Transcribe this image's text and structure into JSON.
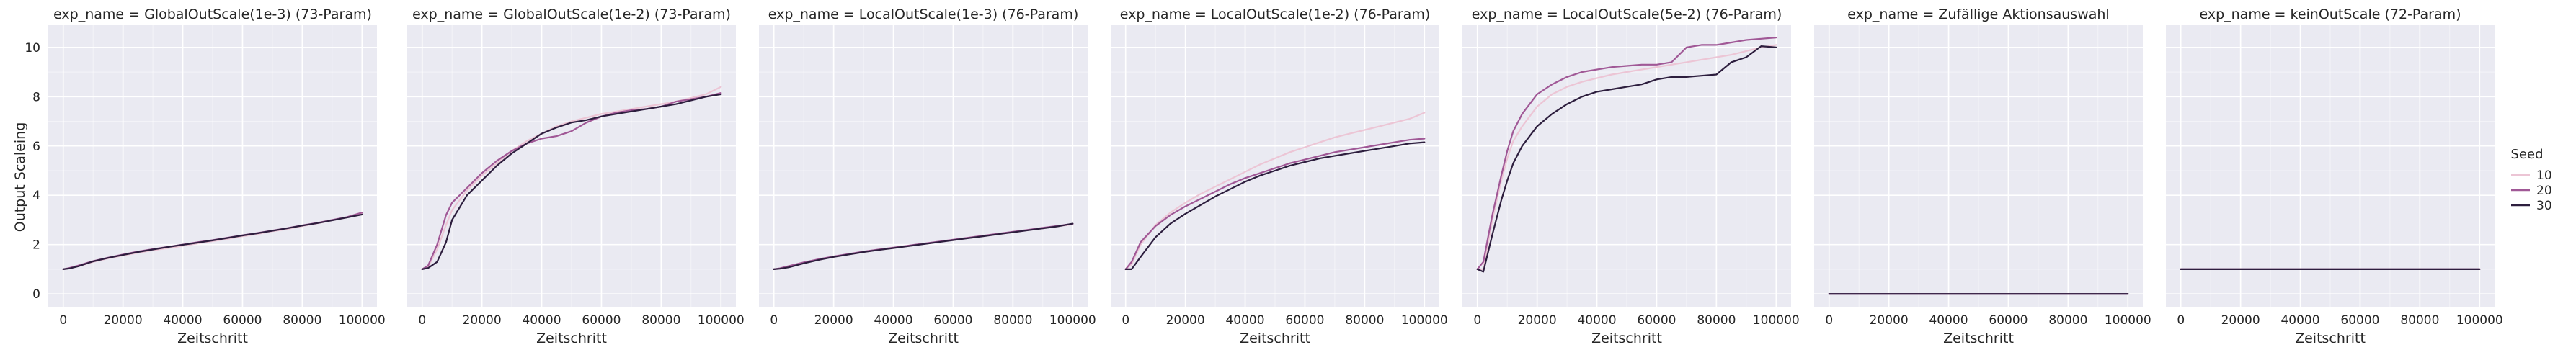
{
  "chart_data": {
    "type": "line",
    "ylabel": "Output Scaleing",
    "xlabel": "Zeitschritt",
    "xlim": [
      -5000,
      105000
    ],
    "ylim": [
      -0.55,
      10.9
    ],
    "xticks": [
      0,
      20000,
      40000,
      60000,
      80000,
      100000
    ],
    "xtick_labels": [
      "0",
      "20000",
      "40000",
      "60000",
      "80000",
      "100000"
    ],
    "yticks": [
      0,
      2,
      4,
      6,
      8,
      10
    ],
    "ytick_labels": [
      "0",
      "2",
      "4",
      "6",
      "8",
      "10"
    ],
    "grid": true,
    "legend": {
      "title": "Seed",
      "placement": "right",
      "entries": [
        {
          "label": "10",
          "color": "#ecc5d5"
        },
        {
          "label": "20",
          "color": "#a05896"
        },
        {
          "label": "30",
          "color": "#2d1e3e"
        }
      ]
    },
    "panels": [
      {
        "title": "exp_name = GlobalOutScale(1e-3) (73-Param)",
        "series": [
          {
            "seed": "10",
            "x": [
              0,
              2000,
              5000,
              10000,
              15000,
              20000,
              25000,
              30000,
              35000,
              40000,
              45000,
              50000,
              55000,
              60000,
              65000,
              70000,
              75000,
              80000,
              85000,
              90000,
              95000,
              100000
            ],
            "y": [
              1.0,
              1.04,
              1.12,
              1.3,
              1.44,
              1.56,
              1.67,
              1.77,
              1.86,
              1.95,
              2.05,
              2.14,
              2.23,
              2.34,
              2.43,
              2.54,
              2.63,
              2.75,
              2.86,
              2.98,
              3.1,
              3.25
            ]
          },
          {
            "seed": "20",
            "x": [
              0,
              2000,
              5000,
              10000,
              15000,
              20000,
              25000,
              30000,
              35000,
              40000,
              45000,
              50000,
              55000,
              60000,
              65000,
              70000,
              75000,
              80000,
              85000,
              90000,
              95000,
              100000
            ],
            "y": [
              1.0,
              1.05,
              1.15,
              1.33,
              1.47,
              1.6,
              1.72,
              1.82,
              1.91,
              2.0,
              2.1,
              2.18,
              2.28,
              2.38,
              2.47,
              2.57,
              2.67,
              2.78,
              2.88,
              3.0,
              3.12,
              3.3
            ]
          },
          {
            "seed": "30",
            "x": [
              0,
              2000,
              5000,
              10000,
              15000,
              20000,
              25000,
              30000,
              35000,
              40000,
              45000,
              50000,
              55000,
              60000,
              65000,
              70000,
              75000,
              80000,
              85000,
              90000,
              95000,
              100000
            ],
            "y": [
              1.0,
              1.03,
              1.12,
              1.32,
              1.46,
              1.58,
              1.7,
              1.8,
              1.9,
              1.99,
              2.08,
              2.17,
              2.27,
              2.37,
              2.46,
              2.56,
              2.66,
              2.77,
              2.87,
              2.98,
              3.1,
              3.22
            ]
          }
        ]
      },
      {
        "title": "exp_name = GlobalOutScale(1e-2) (73-Param)",
        "series": [
          {
            "seed": "10",
            "x": [
              0,
              2000,
              5000,
              8000,
              10000,
              15000,
              20000,
              25000,
              30000,
              35000,
              40000,
              45000,
              50000,
              55000,
              60000,
              65000,
              70000,
              75000,
              80000,
              85000,
              90000,
              95000,
              100000
            ],
            "y": [
              1.0,
              1.1,
              1.8,
              2.8,
              3.4,
              4.2,
              4.8,
              5.3,
              5.8,
              6.2,
              6.5,
              6.8,
              7.0,
              7.15,
              7.3,
              7.4,
              7.5,
              7.6,
              7.7,
              7.8,
              7.95,
              8.1,
              8.4
            ]
          },
          {
            "seed": "20",
            "x": [
              0,
              2000,
              5000,
              8000,
              10000,
              15000,
              20000,
              25000,
              30000,
              35000,
              40000,
              45000,
              50000,
              55000,
              60000,
              65000,
              70000,
              75000,
              80000,
              85000,
              90000,
              95000,
              100000
            ],
            "y": [
              1.0,
              1.15,
              2.0,
              3.2,
              3.7,
              4.3,
              4.9,
              5.4,
              5.8,
              6.1,
              6.3,
              6.4,
              6.6,
              6.95,
              7.2,
              7.35,
              7.45,
              7.5,
              7.6,
              7.8,
              7.9,
              8.0,
              8.15
            ]
          },
          {
            "seed": "30",
            "x": [
              0,
              2000,
              5000,
              8000,
              10000,
              15000,
              20000,
              25000,
              30000,
              35000,
              40000,
              45000,
              50000,
              55000,
              60000,
              65000,
              70000,
              75000,
              80000,
              85000,
              90000,
              95000,
              100000
            ],
            "y": [
              1.0,
              1.05,
              1.3,
              2.1,
              3.0,
              4.0,
              4.6,
              5.2,
              5.7,
              6.1,
              6.5,
              6.75,
              6.95,
              7.05,
              7.2,
              7.3,
              7.4,
              7.5,
              7.6,
              7.7,
              7.85,
              8.0,
              8.1
            ]
          }
        ]
      },
      {
        "title": "exp_name = LocalOutScale(1e-3) (76-Param)",
        "series": [
          {
            "seed": "10",
            "x": [
              0,
              2000,
              5000,
              10000,
              15000,
              20000,
              25000,
              30000,
              35000,
              40000,
              45000,
              50000,
              55000,
              60000,
              65000,
              70000,
              75000,
              80000,
              85000,
              90000,
              95000,
              100000
            ],
            "y": [
              1.0,
              1.03,
              1.1,
              1.25,
              1.38,
              1.5,
              1.6,
              1.7,
              1.78,
              1.86,
              1.94,
              2.02,
              2.1,
              2.18,
              2.26,
              2.34,
              2.42,
              2.5,
              2.58,
              2.66,
              2.74,
              2.82
            ]
          },
          {
            "seed": "20",
            "x": [
              0,
              2000,
              5000,
              10000,
              15000,
              20000,
              25000,
              30000,
              35000,
              40000,
              45000,
              50000,
              55000,
              60000,
              65000,
              70000,
              75000,
              80000,
              85000,
              90000,
              95000,
              100000
            ],
            "y": [
              1.0,
              1.04,
              1.13,
              1.28,
              1.41,
              1.52,
              1.62,
              1.72,
              1.8,
              1.88,
              1.96,
              2.04,
              2.12,
              2.2,
              2.28,
              2.36,
              2.44,
              2.52,
              2.6,
              2.68,
              2.76,
              2.84
            ]
          },
          {
            "seed": "30",
            "x": [
              0,
              2000,
              5000,
              10000,
              15000,
              20000,
              25000,
              30000,
              35000,
              40000,
              45000,
              50000,
              55000,
              60000,
              65000,
              70000,
              75000,
              80000,
              85000,
              90000,
              95000,
              100000
            ],
            "y": [
              1.0,
              1.02,
              1.08,
              1.24,
              1.38,
              1.5,
              1.6,
              1.7,
              1.78,
              1.86,
              1.94,
              2.02,
              2.1,
              2.18,
              2.26,
              2.34,
              2.42,
              2.5,
              2.58,
              2.66,
              2.74,
              2.85
            ]
          }
        ]
      },
      {
        "title": "exp_name = LocalOutScale(1e-2) (76-Param)",
        "series": [
          {
            "seed": "10",
            "x": [
              0,
              2000,
              5000,
              10000,
              15000,
              20000,
              25000,
              30000,
              35000,
              40000,
              45000,
              50000,
              55000,
              60000,
              65000,
              70000,
              75000,
              80000,
              85000,
              90000,
              95000,
              100000
            ],
            "y": [
              1.0,
              1.2,
              2.0,
              2.8,
              3.3,
              3.7,
              4.05,
              4.35,
              4.65,
              4.95,
              5.25,
              5.5,
              5.75,
              5.95,
              6.15,
              6.35,
              6.5,
              6.65,
              6.8,
              6.95,
              7.1,
              7.35
            ]
          },
          {
            "seed": "20",
            "x": [
              0,
              2000,
              5000,
              10000,
              15000,
              20000,
              25000,
              30000,
              35000,
              40000,
              45000,
              50000,
              55000,
              60000,
              65000,
              70000,
              75000,
              80000,
              85000,
              90000,
              95000,
              100000
            ],
            "y": [
              1.0,
              1.3,
              2.1,
              2.75,
              3.2,
              3.55,
              3.85,
              4.15,
              4.45,
              4.7,
              4.9,
              5.1,
              5.3,
              5.45,
              5.6,
              5.75,
              5.85,
              5.95,
              6.05,
              6.15,
              6.25,
              6.3
            ]
          },
          {
            "seed": "30",
            "x": [
              0,
              2000,
              5000,
              10000,
              15000,
              20000,
              25000,
              30000,
              35000,
              40000,
              45000,
              50000,
              55000,
              60000,
              65000,
              70000,
              75000,
              80000,
              85000,
              90000,
              95000,
              100000
            ],
            "y": [
              1.0,
              1.0,
              1.5,
              2.3,
              2.85,
              3.25,
              3.6,
              3.95,
              4.25,
              4.55,
              4.8,
              5.0,
              5.2,
              5.35,
              5.5,
              5.6,
              5.7,
              5.8,
              5.9,
              6.0,
              6.1,
              6.15
            ]
          }
        ]
      },
      {
        "title": "exp_name = LocalOutScale(5e-2) (76-Param)",
        "series": [
          {
            "seed": "10",
            "x": [
              0,
              2000,
              5000,
              8000,
              10000,
              12000,
              15000,
              20000,
              25000,
              30000,
              35000,
              40000,
              45000,
              50000,
              55000,
              60000,
              65000,
              70000,
              75000,
              80000,
              85000,
              90000,
              95000,
              100000
            ],
            "y": [
              1.0,
              1.0,
              3.0,
              4.6,
              5.5,
              6.2,
              6.8,
              7.6,
              8.1,
              8.4,
              8.6,
              8.75,
              8.9,
              9.0,
              9.1,
              9.2,
              9.3,
              9.4,
              9.5,
              9.6,
              9.7,
              9.85,
              10.0,
              10.1
            ]
          },
          {
            "seed": "20",
            "x": [
              0,
              2000,
              5000,
              8000,
              10000,
              12000,
              15000,
              20000,
              25000,
              30000,
              35000,
              40000,
              45000,
              50000,
              55000,
              60000,
              65000,
              70000,
              75000,
              80000,
              85000,
              90000,
              95000,
              100000
            ],
            "y": [
              1.0,
              1.3,
              3.2,
              4.8,
              5.8,
              6.6,
              7.3,
              8.1,
              8.5,
              8.8,
              9.0,
              9.1,
              9.2,
              9.25,
              9.3,
              9.3,
              9.4,
              10.0,
              10.1,
              10.1,
              10.2,
              10.3,
              10.35,
              10.4
            ]
          },
          {
            "seed": "30",
            "x": [
              0,
              2000,
              5000,
              8000,
              10000,
              12000,
              15000,
              20000,
              25000,
              30000,
              35000,
              40000,
              45000,
              50000,
              55000,
              60000,
              65000,
              70000,
              75000,
              80000,
              85000,
              90000,
              95000,
              100000
            ],
            "y": [
              1.0,
              0.9,
              2.4,
              3.8,
              4.6,
              5.3,
              6.0,
              6.8,
              7.3,
              7.7,
              8.0,
              8.2,
              8.3,
              8.4,
              8.5,
              8.7,
              8.8,
              8.8,
              8.85,
              8.9,
              9.4,
              9.6,
              10.05,
              10.0
            ]
          }
        ]
      },
      {
        "title": "exp_name = Zufällige Aktionsauswahl",
        "series": [
          {
            "seed": "10",
            "x": [
              0,
              100000
            ],
            "y": [
              0.0,
              0.0
            ]
          },
          {
            "seed": "20",
            "x": [
              0,
              100000
            ],
            "y": [
              0.0,
              0.0
            ]
          },
          {
            "seed": "30",
            "x": [
              0,
              100000
            ],
            "y": [
              0.0,
              0.0
            ]
          }
        ]
      },
      {
        "title": "exp_name = keinOutScale (72-Param)",
        "series": [
          {
            "seed": "10",
            "x": [
              0,
              100000
            ],
            "y": [
              1.0,
              1.0
            ]
          },
          {
            "seed": "20",
            "x": [
              0,
              100000
            ],
            "y": [
              1.0,
              1.0
            ]
          },
          {
            "seed": "30",
            "x": [
              0,
              100000
            ],
            "y": [
              1.0,
              1.0
            ]
          }
        ]
      }
    ]
  }
}
